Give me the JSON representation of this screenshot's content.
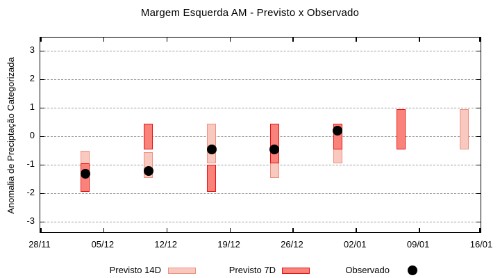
{
  "chart_data": {
    "type": "bar",
    "subtype": "floating-range-bars-with-scatter-overlay",
    "title": "Margem Esquerda AM - Previsto x Observado",
    "xlabel": "",
    "ylabel": "Anomalia de Preciptação Categorizada",
    "ylim": [
      -3.5,
      3.5
    ],
    "yticks": [
      3,
      2,
      1,
      0,
      -1,
      -2,
      -3
    ],
    "grid": "horizontal-dashed",
    "grid_color": "#9a9a9a",
    "legend_position": "bottom",
    "x_axis": {
      "range_days": 49,
      "tick_labels": [
        "28/11",
        "05/12",
        "12/12",
        "19/12",
        "26/12",
        "02/01",
        "09/01",
        "16/01"
      ],
      "tick_days": [
        0,
        7,
        14,
        21,
        28,
        35,
        42,
        49
      ]
    },
    "series": [
      {
        "name": "Previsto 14D",
        "type": "range-bar",
        "fill": "#f9c8bf",
        "border": "#ee9082",
        "points": [
          {
            "date": "03/12",
            "day": 5,
            "high": -0.5,
            "low": -1.95
          },
          {
            "date": "10/12",
            "day": 12,
            "high": -0.55,
            "low": -1.45
          },
          {
            "date": "17/12",
            "day": 19,
            "high": 0.45,
            "low": -0.95
          },
          {
            "date": "24/12",
            "day": 26,
            "high": 0.45,
            "low": -1.45
          },
          {
            "date": "31/12",
            "day": 33,
            "high": 0.45,
            "low": -0.95
          },
          {
            "date": "14/01",
            "day": 47,
            "high": 0.95,
            "low": -0.45
          }
        ]
      },
      {
        "name": "Previsto 7D",
        "type": "range-bar",
        "fill": "#f9837b",
        "border": "#e81010",
        "points": [
          {
            "date": "03/12",
            "day": 5,
            "high": -0.95,
            "low": -1.95
          },
          {
            "date": "10/12",
            "day": 12,
            "high": 0.45,
            "low": -0.45
          },
          {
            "date": "17/12",
            "day": 19,
            "high": -1.0,
            "low": -1.95
          },
          {
            "date": "24/12",
            "day": 26,
            "high": 0.45,
            "low": -0.95
          },
          {
            "date": "31/12",
            "day": 33,
            "high": 0.45,
            "low": -0.45
          },
          {
            "date": "07/01",
            "day": 40,
            "high": 0.95,
            "low": -0.45
          }
        ]
      },
      {
        "name": "Observado",
        "type": "scatter",
        "color": "#000000",
        "points": [
          {
            "date": "03/12",
            "day": 5,
            "value": -1.3
          },
          {
            "date": "10/12",
            "day": 12,
            "value": -1.2
          },
          {
            "date": "17/12",
            "day": 19,
            "value": -0.45
          },
          {
            "date": "24/12",
            "day": 26,
            "value": -0.45
          },
          {
            "date": "31/12",
            "day": 33,
            "value": 0.2
          }
        ]
      }
    ]
  }
}
